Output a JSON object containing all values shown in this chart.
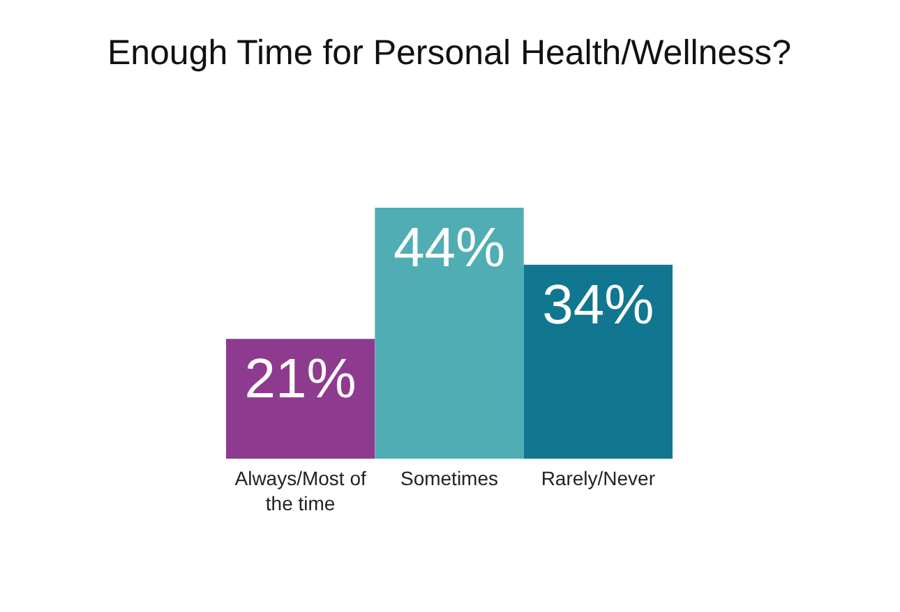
{
  "chart_data": {
    "type": "bar",
    "title": "Enough Time for Personal Health/Wellness?",
    "categories": [
      "Always/Most of the time",
      "Sometimes",
      "Rarely/Never"
    ],
    "values": [
      21,
      44,
      34
    ],
    "value_labels": [
      "21%",
      "44%",
      "34%"
    ],
    "colors": [
      "#8e3b8f",
      "#4fadb3",
      "#117690"
    ]
  }
}
